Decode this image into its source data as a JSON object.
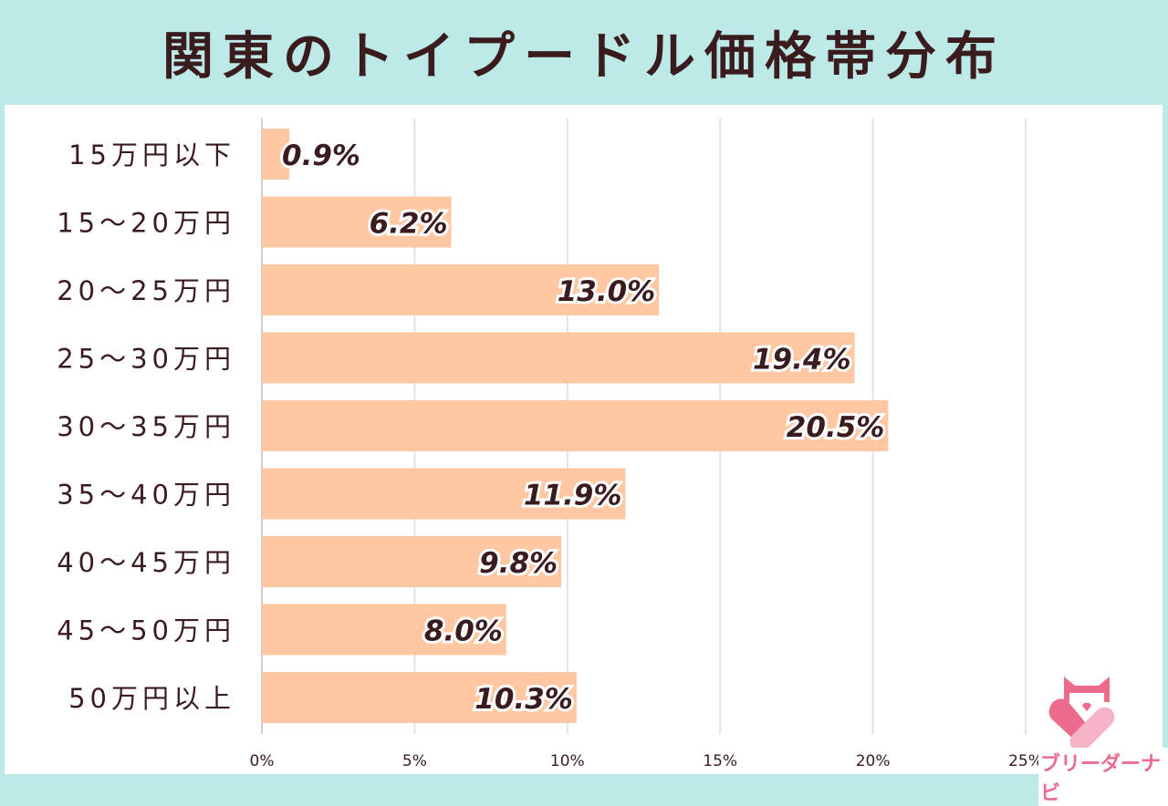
{
  "chart_data": {
    "type": "bar",
    "orientation": "horizontal",
    "title": "関東のトイプードル価格帯分布",
    "categories": [
      "15万円以下",
      "15〜20万円",
      "20〜25万円",
      "25〜30万円",
      "30〜35万円",
      "35〜40万円",
      "40〜45万円",
      "45〜50万円",
      "50万円以上"
    ],
    "values": [
      0.9,
      6.2,
      13.0,
      19.4,
      20.5,
      11.9,
      9.8,
      8.0,
      10.3
    ],
    "data_labels": [
      "0.9%",
      "6.2%",
      "13.0%",
      "19.4%",
      "20.5%",
      "11.9%",
      "9.8%",
      "8.0%",
      "10.3%"
    ],
    "xlim": [
      0,
      25
    ],
    "x_ticks": [
      "0%",
      "5%",
      "10%",
      "15%",
      "20%",
      "25%"
    ],
    "grid": "vertical",
    "bar_color": "#ffc8a3",
    "title_bg_color": "#bde9e7",
    "text_color": "#3a1c1e"
  },
  "logo": {
    "text": "ブリーダーナビ",
    "icon": "cat-heart-logo-icon"
  }
}
